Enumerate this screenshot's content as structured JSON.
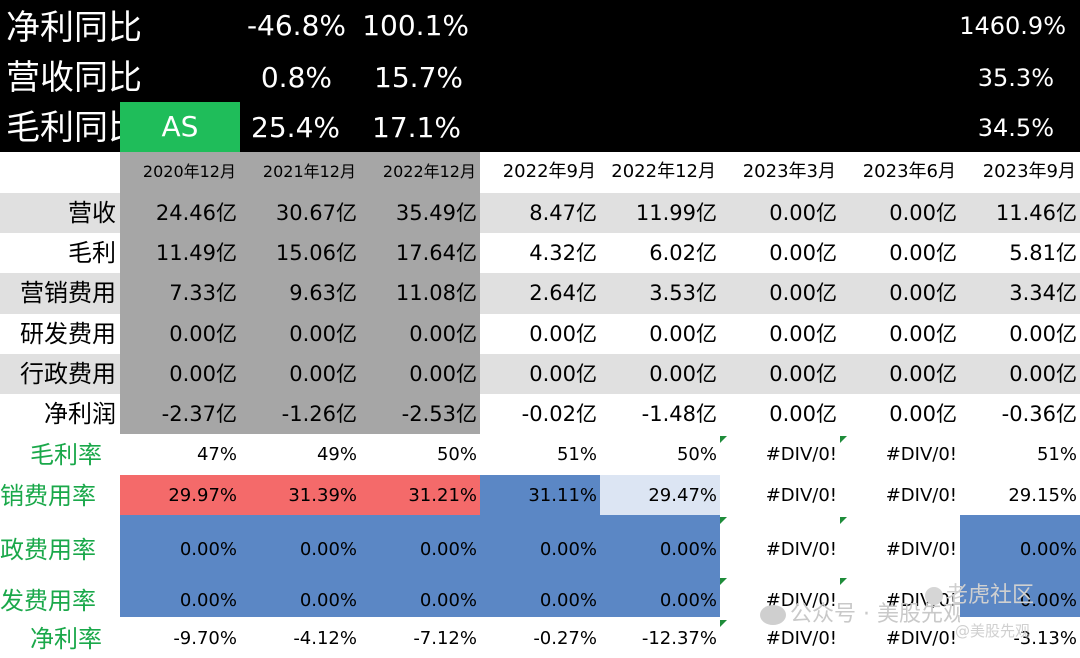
{
  "header": {
    "rows": [
      {
        "label": "净利同比",
        "v1": "-46.8%",
        "v2": "100.1%",
        "v_last": "1460.9%"
      },
      {
        "label": "营收同比",
        "v1": "0.8%",
        "v2": "15.7%",
        "v_last": "35.3%"
      },
      {
        "label": "毛利同比",
        "v1": "25.4%",
        "v2": "17.1%",
        "v_last": "34.5%"
      }
    ],
    "ticker": "AS"
  },
  "columns": [
    "2020年12月",
    "2021年12月",
    "2022年12月",
    "2022年9月",
    "2022年12月",
    "2023年3月",
    "2023年6月",
    "2023年9月"
  ],
  "rows": [
    {
      "label": "营收",
      "values": [
        "24.46亿",
        "30.67亿",
        "35.49亿",
        "8.47亿",
        "11.99亿",
        "0.00亿",
        "0.00亿",
        "11.46亿"
      ]
    },
    {
      "label": "毛利",
      "values": [
        "11.49亿",
        "15.06亿",
        "17.64亿",
        "4.32亿",
        "6.02亿",
        "0.00亿",
        "0.00亿",
        "5.81亿"
      ]
    },
    {
      "label": "营销费用",
      "values": [
        "7.33亿",
        "9.63亿",
        "11.08亿",
        "2.64亿",
        "3.53亿",
        "0.00亿",
        "0.00亿",
        "3.34亿"
      ]
    },
    {
      "label": "研发费用",
      "values": [
        "0.00亿",
        "0.00亿",
        "0.00亿",
        "0.00亿",
        "0.00亿",
        "0.00亿",
        "0.00亿",
        "0.00亿"
      ]
    },
    {
      "label": "行政费用",
      "values": [
        "0.00亿",
        "0.00亿",
        "0.00亿",
        "0.00亿",
        "0.00亿",
        "0.00亿",
        "0.00亿",
        "0.00亿"
      ]
    },
    {
      "label": "净利润",
      "values": [
        "-2.37亿",
        "-1.26亿",
        "-2.53亿",
        "-0.02亿",
        "-1.48亿",
        "0.00亿",
        "0.00亿",
        "-0.36亿"
      ]
    }
  ],
  "ratios": [
    {
      "label": "毛利率",
      "values": [
        "47%",
        "49%",
        "50%",
        "51%",
        "50%",
        "#DIV/0!",
        "#DIV/0!",
        "51%"
      ]
    },
    {
      "label": "销费用率",
      "values": [
        "29.97%",
        "31.39%",
        "31.21%",
        "31.11%",
        "29.47%",
        "#DIV/0!",
        "#DIV/0!",
        "29.15%"
      ]
    },
    {
      "label": "政费用率",
      "values": [
        "0.00%",
        "0.00%",
        "0.00%",
        "0.00%",
        "0.00%",
        "#DIV/0!",
        "#DIV/0!",
        "0.00%"
      ]
    },
    {
      "label": "发费用率",
      "values": [
        "0.00%",
        "0.00%",
        "0.00%",
        "0.00%",
        "0.00%",
        "#DIV/0!",
        "#DIV/0!",
        "0.00%"
      ]
    },
    {
      "label": "净利率",
      "values": [
        "-9.70%",
        "-4.12%",
        "-7.12%",
        "-0.27%",
        "-12.37%",
        "#DIV/0!",
        "#DIV/0!",
        "-3.13%"
      ]
    }
  ],
  "colors": {
    "black_band": "#000000",
    "ticker_green": "#1fbd5a",
    "gray_block": "#a6a6a6",
    "stripe": "#e0e0e0",
    "red": "#f46a6a",
    "blue": "#5b87c5",
    "light_blue": "#dce5f3",
    "label_green": "#1aa84a"
  },
  "watermark": {
    "left": "公众号 · 美股先观",
    "right_top": "老虎社区",
    "right_bottom": "@美股先观"
  }
}
